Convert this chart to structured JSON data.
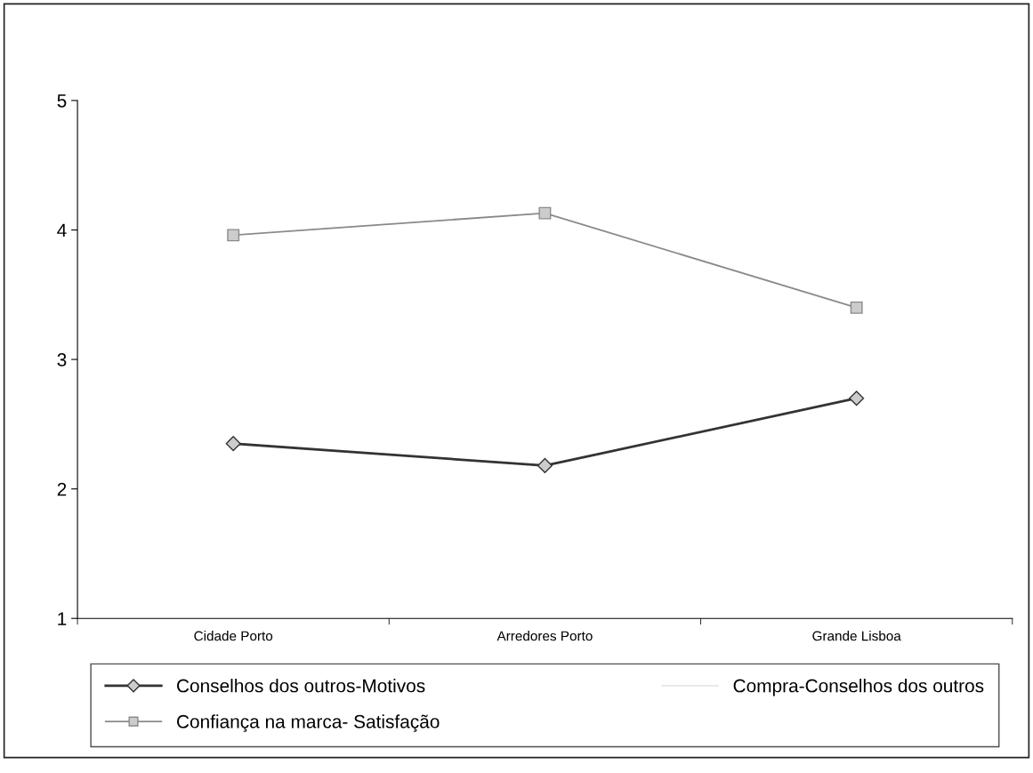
{
  "chart_data": {
    "type": "line",
    "categories": [
      "Cidade Porto",
      "Arredores Porto",
      "Grande Lisboa"
    ],
    "series": [
      {
        "name": "Conselhos dos outros-Motivos",
        "color": "#333333",
        "marker": "diamond",
        "values": [
          2.35,
          2.18,
          2.7
        ]
      },
      {
        "name": "Confiança na marca- Satisfação",
        "color": "#8a8a8a",
        "marker": "square",
        "values": [
          3.96,
          4.13,
          3.4
        ]
      },
      {
        "name": "Compra-Conselhos dos outros",
        "color": "#e6e6e6",
        "marker": "none",
        "values": [
          null,
          null,
          null
        ]
      }
    ],
    "ylim": [
      1,
      5
    ],
    "yticks": [
      1,
      2,
      3,
      4,
      5
    ],
    "grid": false,
    "legend": "bottom"
  }
}
